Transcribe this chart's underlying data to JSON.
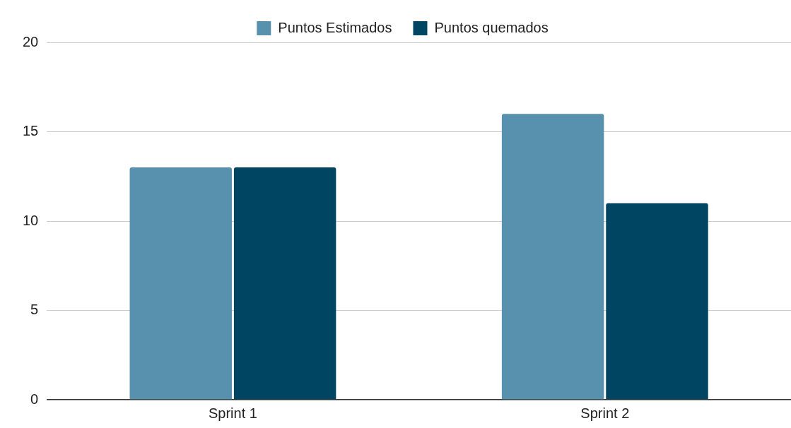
{
  "chart_data": {
    "type": "bar",
    "categories": [
      "Sprint 1",
      "Sprint 2"
    ],
    "series": [
      {
        "name": "Puntos Estimados",
        "color": "#5891ad",
        "values": [
          13,
          16
        ]
      },
      {
        "name": "Puntos quemados",
        "color": "#004561",
        "values": [
          13,
          11
        ]
      }
    ],
    "ylim": [
      0,
      20
    ],
    "yticks": [
      0,
      5,
      10,
      15,
      20
    ],
    "grid": "y",
    "legend": "top"
  }
}
